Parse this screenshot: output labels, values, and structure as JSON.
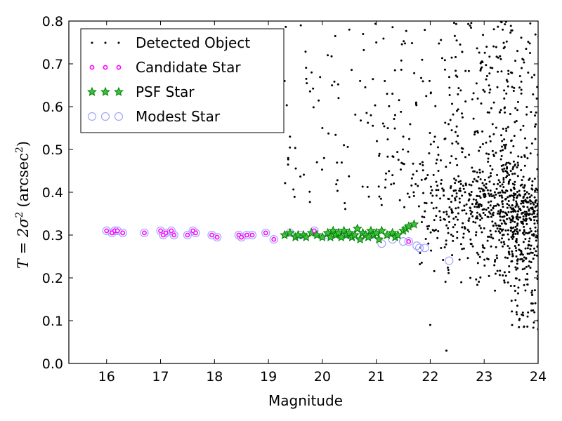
{
  "chart_data": {
    "type": "scatter",
    "xlabel": "Magnitude",
    "ylabel_main": "T = 2σ",
    "ylabel_sup": "2",
    "ylabel_unit": "(arcsec",
    "ylabel_unit_sup": "2",
    "ylabel_close": ")",
    "xlim": [
      15.3,
      24
    ],
    "ylim": [
      0.0,
      0.8
    ],
    "x_ticks": [
      "16",
      "17",
      "18",
      "19",
      "20",
      "21",
      "22",
      "23",
      "24"
    ],
    "y_ticks": [
      "0.0",
      "0.1",
      "0.2",
      "0.3",
      "0.4",
      "0.5",
      "0.6",
      "0.7",
      "0.8"
    ],
    "grid": false,
    "legend_position": "top-left",
    "colors": {
      "detected": "#000000",
      "candidate": "#ff00ff",
      "psf": "#008000",
      "modest": "#a4a4ff"
    },
    "series": [
      {
        "name": "Detected Object",
        "marker": "dot",
        "generator": {
          "count": 1300,
          "description_of_distribution": "scattered faint objects, dense at magnitude 22-24 spanning T 0.05-0.8",
          "seed": 7
        },
        "points": [
          [
            19.6,
            0.79
          ],
          [
            19.8,
            0.68
          ],
          [
            20.1,
            0.72
          ],
          [
            20.0,
            0.55
          ],
          [
            20.3,
            0.62
          ],
          [
            20.5,
            0.78
          ],
          [
            19.9,
            0.47
          ],
          [
            20.4,
            0.51
          ],
          [
            20.7,
            0.66
          ],
          [
            20.9,
            0.58
          ],
          [
            21.1,
            0.37
          ],
          [
            21.0,
            0.75
          ],
          [
            21.3,
            0.44
          ],
          [
            21.2,
            0.63
          ],
          [
            21.5,
            0.53
          ],
          [
            18.9,
            0.56
          ],
          [
            19.1,
            0.74
          ],
          [
            19.4,
            0.53
          ],
          [
            19.3,
            0.66
          ],
          [
            22.0,
            0.09
          ],
          [
            22.3,
            0.03
          ],
          [
            23.2,
            0.17
          ],
          [
            23.6,
            0.12
          ],
          [
            23.9,
            0.14
          ],
          [
            24.0,
            0.08
          ]
        ]
      },
      {
        "name": "Candidate Star",
        "marker": "small-circle",
        "points": [
          [
            16.0,
            0.31
          ],
          [
            16.1,
            0.305
          ],
          [
            16.15,
            0.31
          ],
          [
            16.2,
            0.31
          ],
          [
            16.3,
            0.305
          ],
          [
            16.7,
            0.305
          ],
          [
            17.0,
            0.31
          ],
          [
            17.05,
            0.3
          ],
          [
            17.1,
            0.305
          ],
          [
            17.2,
            0.31
          ],
          [
            17.25,
            0.3
          ],
          [
            17.5,
            0.3
          ],
          [
            17.6,
            0.31
          ],
          [
            17.65,
            0.305
          ],
          [
            17.95,
            0.3
          ],
          [
            18.05,
            0.295
          ],
          [
            18.45,
            0.3
          ],
          [
            18.5,
            0.295
          ],
          [
            18.6,
            0.3
          ],
          [
            18.7,
            0.3
          ],
          [
            18.95,
            0.305
          ],
          [
            19.1,
            0.29
          ],
          [
            19.85,
            0.31
          ],
          [
            21.6,
            0.285
          ]
        ]
      },
      {
        "name": "PSF Star",
        "marker": "star",
        "points": [
          [
            19.3,
            0.3
          ],
          [
            19.4,
            0.305
          ],
          [
            19.5,
            0.295
          ],
          [
            19.55,
            0.3
          ],
          [
            19.65,
            0.3
          ],
          [
            19.7,
            0.295
          ],
          [
            19.8,
            0.305
          ],
          [
            19.9,
            0.3
          ],
          [
            20.0,
            0.295
          ],
          [
            20.1,
            0.305
          ],
          [
            20.15,
            0.295
          ],
          [
            20.2,
            0.31
          ],
          [
            20.25,
            0.3
          ],
          [
            20.3,
            0.305
          ],
          [
            20.35,
            0.295
          ],
          [
            20.4,
            0.31
          ],
          [
            20.45,
            0.3
          ],
          [
            20.5,
            0.305
          ],
          [
            20.55,
            0.295
          ],
          [
            20.6,
            0.3
          ],
          [
            20.65,
            0.315
          ],
          [
            20.7,
            0.29
          ],
          [
            20.75,
            0.305
          ],
          [
            20.8,
            0.3
          ],
          [
            20.85,
            0.295
          ],
          [
            20.9,
            0.31
          ],
          [
            20.95,
            0.3
          ],
          [
            21.0,
            0.305
          ],
          [
            21.05,
            0.29
          ],
          [
            21.1,
            0.31
          ],
          [
            21.2,
            0.3
          ],
          [
            21.3,
            0.305
          ],
          [
            21.35,
            0.295
          ],
          [
            21.4,
            0.3
          ],
          [
            21.5,
            0.31
          ],
          [
            21.55,
            0.315
          ],
          [
            21.6,
            0.32
          ],
          [
            21.7,
            0.325
          ]
        ]
      },
      {
        "name": "Modest Star",
        "marker": "open-circle",
        "points": [
          [
            16.0,
            0.31
          ],
          [
            16.1,
            0.305
          ],
          [
            16.15,
            0.31
          ],
          [
            16.2,
            0.31
          ],
          [
            16.3,
            0.305
          ],
          [
            16.7,
            0.305
          ],
          [
            17.0,
            0.31
          ],
          [
            17.05,
            0.3
          ],
          [
            17.1,
            0.305
          ],
          [
            17.2,
            0.31
          ],
          [
            17.25,
            0.3
          ],
          [
            17.5,
            0.3
          ],
          [
            17.6,
            0.31
          ],
          [
            17.65,
            0.305
          ],
          [
            17.95,
            0.3
          ],
          [
            18.05,
            0.295
          ],
          [
            18.45,
            0.3
          ],
          [
            18.5,
            0.295
          ],
          [
            18.6,
            0.3
          ],
          [
            18.7,
            0.3
          ],
          [
            18.95,
            0.305
          ],
          [
            19.1,
            0.29
          ],
          [
            19.4,
            0.305
          ],
          [
            19.6,
            0.3
          ],
          [
            19.85,
            0.31
          ],
          [
            20.1,
            0.3
          ],
          [
            20.3,
            0.305
          ],
          [
            20.5,
            0.3
          ],
          [
            20.7,
            0.295
          ],
          [
            20.9,
            0.3
          ],
          [
            21.1,
            0.28
          ],
          [
            21.3,
            0.29
          ],
          [
            21.5,
            0.285
          ],
          [
            21.6,
            0.285
          ],
          [
            21.75,
            0.275
          ],
          [
            21.8,
            0.27
          ],
          [
            21.9,
            0.27
          ],
          [
            22.35,
            0.24
          ]
        ]
      }
    ]
  }
}
